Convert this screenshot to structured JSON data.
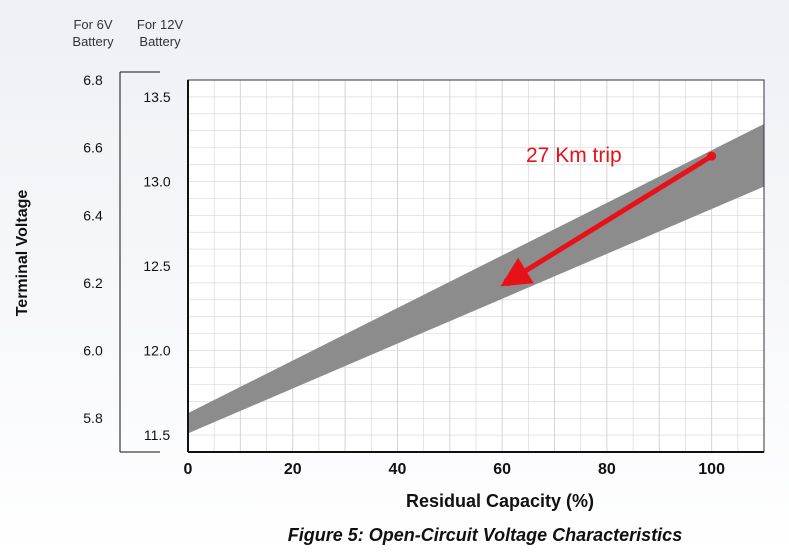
{
  "header": {
    "col6v": [
      "For 6V",
      "Battery"
    ],
    "col12v": [
      "For 12V",
      "Battery"
    ]
  },
  "labels": {
    "ylabel": "Terminal Voltage",
    "xlabel": "Residual Capacity (%)",
    "caption": "Figure 5: Open-Circuit Voltage Characteristics",
    "annotation": "27 Km trip"
  },
  "chart_data": {
    "type": "area",
    "title": "Figure 5: Open-Circuit Voltage Characteristics",
    "xlabel": "Residual Capacity (%)",
    "ylabel": "Terminal Voltage",
    "xlim": [
      0,
      110
    ],
    "ylim_12v": [
      11.4,
      13.6
    ],
    "ylim_6v": [
      5.7,
      6.8
    ],
    "x_ticks": [
      0,
      20,
      40,
      60,
      80,
      100
    ],
    "y_ticks_12v": [
      11.5,
      12.0,
      12.5,
      13.0,
      13.5
    ],
    "y_ticks_6v": [
      5.8,
      6.0,
      6.2,
      6.4,
      6.6,
      6.8
    ],
    "y_tick_labels_12v": [
      "11.5",
      "12.0",
      "12.5",
      "13.0",
      "13.5"
    ],
    "y_tick_labels_6v": [
      "5.8",
      "6.0",
      "6.2",
      "6.4",
      "6.6",
      "6.8"
    ],
    "grid": true,
    "band": {
      "x": [
        0,
        110
      ],
      "upper_12v": [
        11.63,
        13.34
      ],
      "lower_12v": [
        11.51,
        12.97
      ]
    },
    "annotation": {
      "text": "27 Km trip",
      "from": {
        "x": 100,
        "y": 13.15
      },
      "to": {
        "x": 60,
        "y": 12.42
      }
    },
    "colors": {
      "band": "#8c8c8c",
      "arrow": "#e8111a",
      "grid": "#d4d4d4"
    }
  }
}
